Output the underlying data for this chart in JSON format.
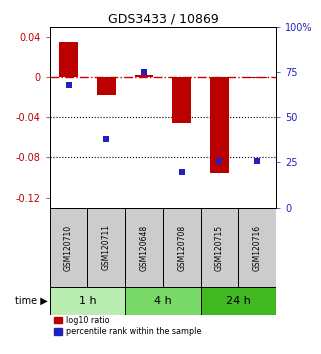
{
  "title": "GDS3433 / 10869",
  "samples": [
    "GSM120710",
    "GSM120711",
    "GSM120648",
    "GSM120708",
    "GSM120715",
    "GSM120716"
  ],
  "log10_ratio": [
    0.035,
    -0.018,
    0.002,
    -0.046,
    -0.095,
    -0.001
  ],
  "percentile_rank": [
    68,
    38,
    75,
    20,
    26,
    26
  ],
  "time_groups": [
    {
      "label": "1 h",
      "samples": [
        0,
        1
      ],
      "color": "#b8ecb0"
    },
    {
      "label": "4 h",
      "samples": [
        2,
        3
      ],
      "color": "#78d868"
    },
    {
      "label": "24 h",
      "samples": [
        4,
        5
      ],
      "color": "#40b820"
    }
  ],
  "ylim_left": [
    -0.13,
    0.05
  ],
  "ylim_right": [
    0,
    100
  ],
  "yticks_left": [
    0.04,
    0.0,
    -0.04,
    -0.08,
    -0.12
  ],
  "yticks_right": [
    100,
    75,
    50,
    25,
    0
  ],
  "bar_color": "#bb0000",
  "dot_color": "#2222bb",
  "hline_color": "#cc0000",
  "dotted_line_color": "#555555",
  "dotted_lines": [
    -0.04,
    -0.08
  ],
  "bar_width": 0.5,
  "sample_box_color": "#cccccc",
  "bg_color": "#ffffff"
}
